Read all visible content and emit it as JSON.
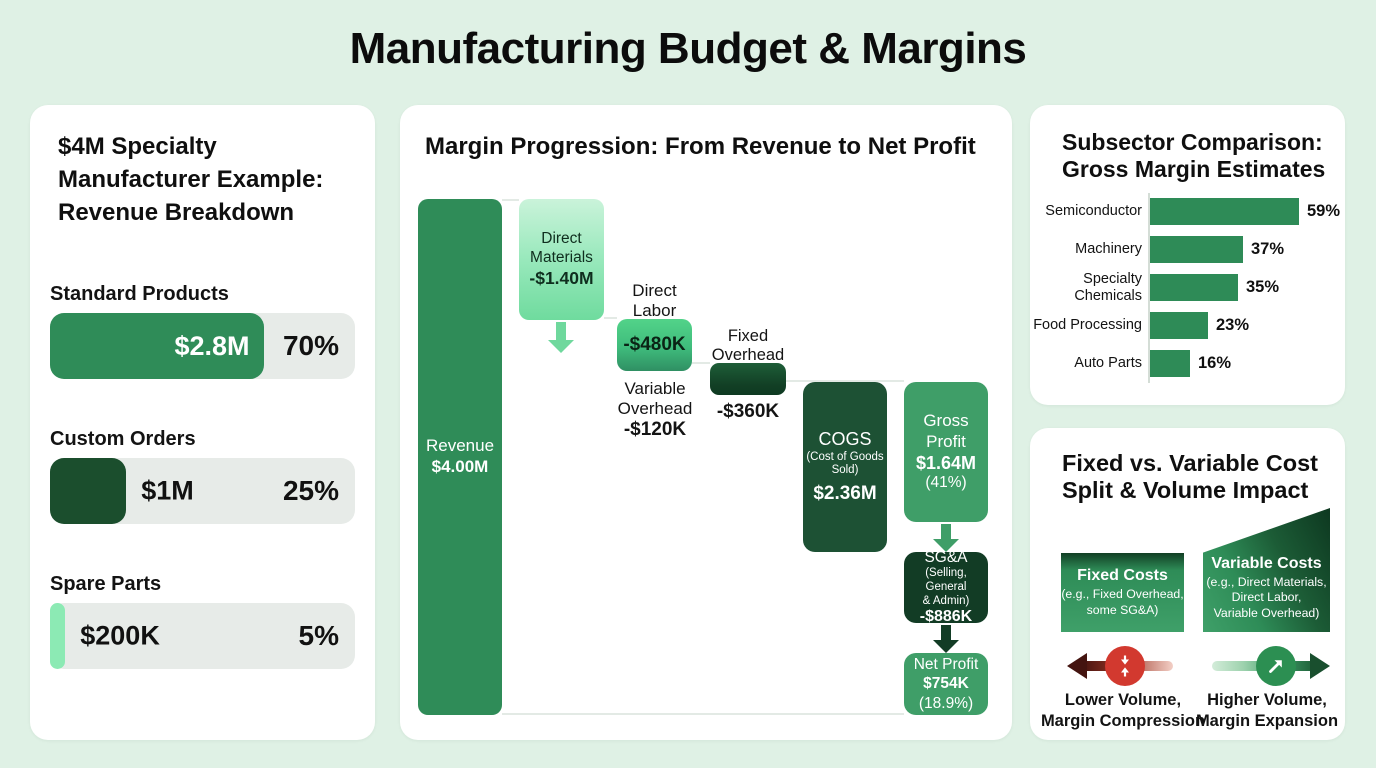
{
  "page_title": "Manufacturing Budget & Margins",
  "revenue_panel": {
    "title": "$4M Specialty Manufacturer Example: Revenue Breakdown",
    "rows": [
      {
        "label": "Standard Products",
        "value": "$2.8M",
        "percent": "70%",
        "share": 70,
        "fill": "#2f8c58",
        "value_inside": true
      },
      {
        "label": "Custom Orders",
        "value": "$1M",
        "percent": "25%",
        "share": 25,
        "fill": "#1b4e2d",
        "value_inside": false
      },
      {
        "label": "Spare Parts",
        "value": "$200K",
        "percent": "5%",
        "share": 5,
        "fill": "#8ceab4",
        "value_inside": false
      }
    ]
  },
  "waterfall_panel": {
    "title": "Margin Progression: From Revenue to Net Profit",
    "revenue": {
      "label": "Revenue",
      "value": "$4.00M"
    },
    "direct_materials": {
      "label1": "Direct",
      "label2": "Materials",
      "value": "-$1.40M"
    },
    "direct_labor": {
      "label1": "Direct",
      "label2": "Labor",
      "value": "-$480K"
    },
    "variable_overhead": {
      "label1": "Variable",
      "label2": "Overhead",
      "value": "-$120K"
    },
    "fixed_overhead": {
      "label1": "Fixed",
      "label2": "Overhead",
      "value": "-$360K"
    },
    "cogs": {
      "label": "COGS",
      "sub1": "(Cost of Goods",
      "sub2": "Sold)",
      "value": "$2.36M"
    },
    "gross_profit": {
      "label": "Gross Profit",
      "value": "$1.64M",
      "percent": "(41%)"
    },
    "sga": {
      "label": "SG&A",
      "sub1": "(Selling, General",
      "sub2": "& Admin)",
      "value": "-$886K"
    },
    "net_profit": {
      "label": "Net Profit",
      "value": "$754K",
      "percent": "(18.9%)"
    }
  },
  "subsector_panel": {
    "title_line1": "Subsector Comparison:",
    "title_line2": "Gross Margin Estimates",
    "bar_color": "#2e8b57",
    "bars": [
      {
        "label": "Semiconductor",
        "value": 59,
        "display": "59%"
      },
      {
        "label": "Machinery",
        "value": 37,
        "display": "37%"
      },
      {
        "label": "Specialty Chemicals",
        "value": 35,
        "display": "35%"
      },
      {
        "label": "Food Processing",
        "value": 23,
        "display": "23%"
      },
      {
        "label": "Auto Parts",
        "value": 16,
        "display": "16%"
      }
    ]
  },
  "fixed_variable_panel": {
    "title_line1": "Fixed vs. Variable Cost",
    "title_line2": "Split & Volume Impact",
    "fixed_box": {
      "title": "Fixed Costs",
      "sub1": "(e.g., Fixed Overhead,",
      "sub2": "some SG&A)"
    },
    "variable_box": {
      "title": "Variable Costs",
      "sub1": "(e.g., Direct Materials,",
      "sub2": "Direct Labor,",
      "sub3": "Variable Overhead)"
    },
    "lower": {
      "line1": "Lower Volume,",
      "line2": "Margin Compression"
    },
    "higher": {
      "line1": "Higher Volume,",
      "line2": "Margin Expansion"
    }
  },
  "colors": {
    "background": "#dff1e5",
    "panel": "#ffffff",
    "green_primary": "#2e8b57",
    "green_medium": "#3f9e68",
    "green_dark": "#1b4e2d",
    "green_darkest": "#123c25",
    "green_mint": "#8ceab4",
    "track_gray": "#e7ebe8",
    "red_accent": "#d2392f"
  },
  "chart_data": [
    {
      "type": "bar",
      "title": "$4M Specialty Manufacturer Example: Revenue Breakdown",
      "categories": [
        "Standard Products",
        "Custom Orders",
        "Spare Parts"
      ],
      "values": [
        2.8,
        1.0,
        0.2
      ],
      "unit": "$M",
      "percent_of_total": [
        70,
        25,
        5
      ],
      "orientation": "horizontal",
      "xlim": [
        0,
        100
      ]
    },
    {
      "type": "bar",
      "subtype": "waterfall",
      "title": "Margin Progression: From Revenue to Net Profit",
      "categories": [
        "Revenue",
        "Direct Materials",
        "Direct Labor",
        "Variable Overhead",
        "Fixed Overhead",
        "COGS (Cost of Goods Sold)",
        "Gross Profit",
        "SG&A (Selling, General & Admin)",
        "Net Profit"
      ],
      "values": [
        4.0,
        -1.4,
        -0.48,
        -0.12,
        -0.36,
        -2.36,
        1.64,
        -0.886,
        0.754
      ],
      "unit": "$M",
      "annotations": {
        "gross_profit_margin": "41%",
        "net_profit_margin": "18.9%"
      }
    },
    {
      "type": "bar",
      "title": "Subsector Comparison: Gross Margin Estimates",
      "categories": [
        "Semiconductor",
        "Machinery",
        "Specialty Chemicals",
        "Food Processing",
        "Auto Parts"
      ],
      "values": [
        59,
        37,
        35,
        23,
        16
      ],
      "unit": "%",
      "orientation": "horizontal",
      "xlim": [
        0,
        60
      ],
      "grid": false,
      "legend": false
    }
  ]
}
